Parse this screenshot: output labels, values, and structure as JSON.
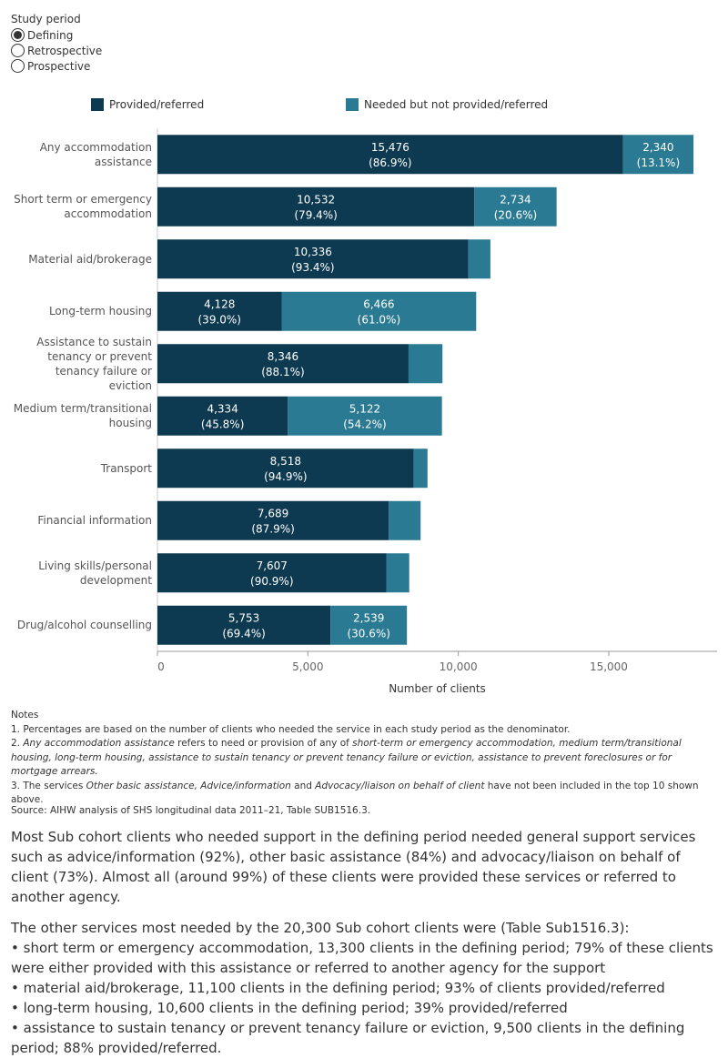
{
  "filter": {
    "title": "Study period",
    "options": [
      "Defining",
      "Retrospective",
      "Prospective"
    ],
    "selected_index": 0
  },
  "chart_data": {
    "type": "bar",
    "orientation": "horizontal",
    "stacked": true,
    "categories": [
      "Any accommodation assistance",
      "Short term or emergency accommodation",
      "Material aid/brokerage",
      "Long-term housing",
      "Assistance to sustain tenancy or prevent tenancy failure or eviction",
      "Medium term/transitional housing",
      "Transport",
      "Financial information",
      "Living skills/personal development",
      "Drug/alcohol counselling"
    ],
    "series": [
      {
        "name": "Provided/referred",
        "color": "#0d3a50",
        "values": [
          15476,
          10532,
          10336,
          4128,
          8346,
          4334,
          8518,
          7689,
          7607,
          5753
        ],
        "value_labels": [
          "15,476",
          "10,532",
          "10,336",
          "4,128",
          "8,346",
          "4,334",
          "8,518",
          "7,689",
          "7,607",
          "5,753"
        ],
        "percent_labels": [
          "(86.9%)",
          "(79.4%)",
          "(93.4%)",
          "(39.0%)",
          "(88.1%)",
          "(45.8%)",
          "(94.9%)",
          "(87.9%)",
          "(90.9%)",
          "(69.4%)"
        ]
      },
      {
        "name": "Needed but not provided/referred",
        "color": "#2b7a93",
        "values": [
          2340,
          2734,
          730,
          6466,
          1127,
          5122,
          458,
          1058,
          762,
          2539
        ],
        "value_labels": [
          "2,340",
          "2,734",
          null,
          "6,466",
          null,
          "5,122",
          null,
          null,
          null,
          "2,539"
        ],
        "percent_labels": [
          "(13.1%)",
          "(20.6%)",
          null,
          "(61.0%)",
          null,
          "(54.2%)",
          null,
          null,
          null,
          "(30.6%)"
        ]
      }
    ],
    "xlim": [
      0,
      18600
    ],
    "xticks": [
      0,
      {
        "value": 5000,
        "label": "5,000"
      },
      {
        "value": 10000,
        "label": "10,000"
      },
      {
        "value": 15000,
        "label": "15,000"
      }
    ],
    "xlabel": "Number of clients"
  },
  "notes": {
    "title": "Notes",
    "items": [
      [
        "1.  Percentages are based on the number of clients who needed the service in each study period as the denominator."
      ],
      [
        "2.  ",
        "Any accommodation assistance",
        " refers to need or provision of any of ",
        "short-term or emergency accommodation, medium term/transitional housing, long-term housing, assistance to sustain tenancy or prevent tenancy failure or eviction, assistance to prevent foreclosures or for mortgage arrears."
      ],
      [
        "3.  The services ",
        "Other basic assistance, Advice/information",
        " and ",
        "Advocacy/liaison on behalf of client",
        "  have not been included in the top 10 shown above."
      ]
    ]
  },
  "source": "Source: AIHW analysis of SHS longitudinal data 2011–21, Table SUB1516.3.",
  "text": {
    "paragraphs": [
      "Most Sub cohort clients who needed support in the defining period needed general support services such as advice/information (92%), other basic assistance (84%) and advocacy/liaison on behalf of client (73%). Almost all (around 99%) of these clients were provided these services or referred to another agency.",
      "The other services most needed by the 20,300 Sub cohort clients were (Table Sub1516.3):"
    ],
    "bullets": [
      "short term or emergency accommodation, 13,300 clients in the defining period; 79% of these clients were either provided with this assistance or referred to another agency for the support",
      "material aid/brokerage, 11,100 clients in the defining period; 93% of clients provided/referred",
      "long-term housing, 10,600 clients in the defining period; 39% provided/referred",
      "assistance to sustain tenancy or prevent tenancy failure or eviction, 9,500 clients in the defining period; 88% provided/referred."
    ]
  }
}
